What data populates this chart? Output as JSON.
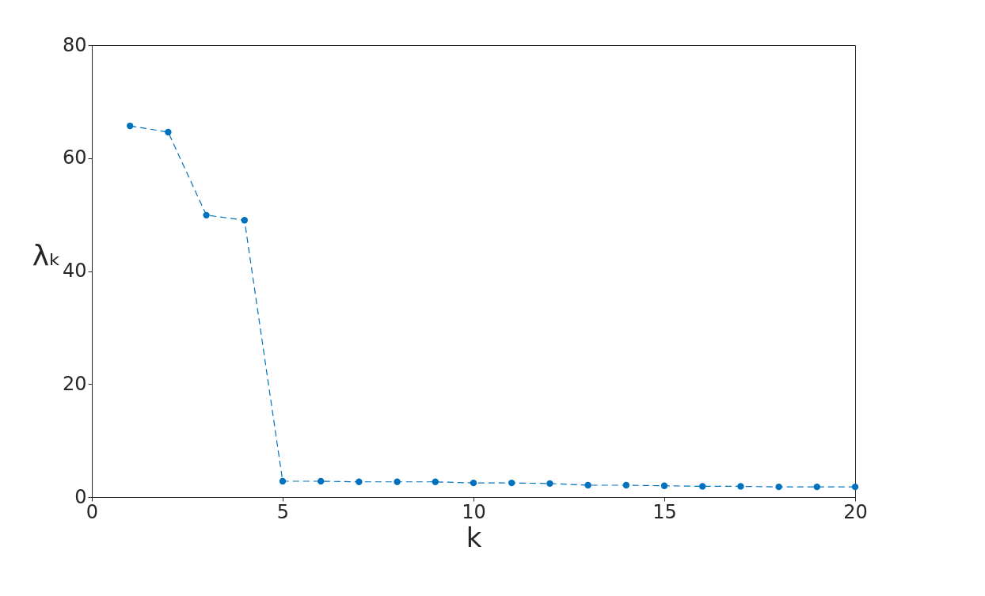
{
  "chart_data": {
    "type": "line",
    "xlabel": "k",
    "ylabel": "λₖ",
    "x": [
      1,
      2,
      3,
      4,
      5,
      6,
      7,
      8,
      9,
      10,
      11,
      12,
      13,
      14,
      15,
      16,
      17,
      18,
      19,
      20
    ],
    "series": [
      {
        "color": "#0072bd",
        "values": [
          65.7,
          64.6,
          49.9,
          49.0,
          2.8,
          2.8,
          2.7,
          2.7,
          2.7,
          2.5,
          2.5,
          2.4,
          2.1,
          2.1,
          2.0,
          1.9,
          1.9,
          1.8,
          1.8,
          1.8
        ]
      }
    ],
    "xlim": [
      0,
      20
    ],
    "xticks": [
      0,
      5,
      10,
      15,
      20
    ],
    "ylim": [
      0,
      80
    ],
    "yticks": [
      0,
      20,
      40,
      60,
      80
    ],
    "marker": "circle",
    "line_style": "dashed",
    "grid": false
  }
}
